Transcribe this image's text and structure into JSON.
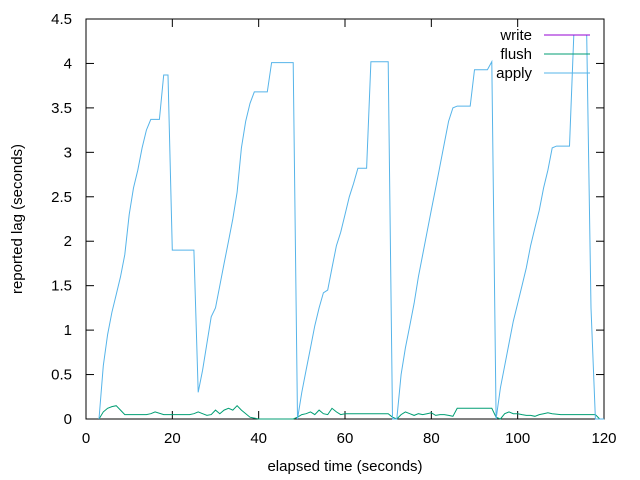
{
  "chart_data": {
    "type": "line",
    "title": "",
    "xlabel": "elapsed time (seconds)",
    "ylabel": "reported lag (seconds)",
    "xlim": [
      0,
      120
    ],
    "ylim": [
      0,
      4.5
    ],
    "xticks": [
      0,
      20,
      40,
      60,
      80,
      100,
      120
    ],
    "yticks": [
      0,
      0.5,
      1,
      1.5,
      2,
      2.5,
      3,
      3.5,
      4,
      4.5
    ],
    "xtick_labels": [
      "0",
      "20",
      "40",
      "60",
      "80",
      "100",
      "120"
    ],
    "ytick_labels": [
      "0",
      "0.5",
      "1",
      "1.5",
      "2",
      "2.5",
      "3",
      "3.5",
      "4",
      "4.5"
    ],
    "grid": false,
    "legend_position": "top-right",
    "series": [
      {
        "name": "write",
        "color": "#9400d3",
        "x": [
          113.5,
          116.5
        ],
        "y": [
          4.32,
          4.32
        ]
      },
      {
        "name": "flush",
        "color": "#009e73",
        "x": [
          3,
          4,
          5,
          6,
          7,
          8,
          9,
          12,
          14,
          15,
          16,
          18,
          20,
          22,
          24,
          25,
          26,
          27,
          28,
          29,
          30,
          31,
          32,
          33,
          34,
          35,
          36,
          38,
          40,
          45,
          48,
          49,
          50,
          51,
          52,
          53,
          54,
          55,
          56,
          57,
          58,
          59,
          60,
          62,
          65,
          70,
          71,
          72,
          73,
          74,
          75,
          76,
          77,
          78,
          79,
          80,
          81,
          82,
          83,
          84,
          85,
          86,
          90,
          94,
          95,
          96,
          97,
          98,
          99,
          100,
          101,
          102,
          103,
          104,
          105,
          106,
          107,
          108,
          110,
          112,
          115,
          118,
          119
        ],
        "y": [
          0,
          0.08,
          0.12,
          0.14,
          0.15,
          0.1,
          0.05,
          0.05,
          0.05,
          0.06,
          0.08,
          0.05,
          0.05,
          0.05,
          0.05,
          0.06,
          0.08,
          0.06,
          0.04,
          0.05,
          0.1,
          0.06,
          0.1,
          0.12,
          0.1,
          0.15,
          0.1,
          0.02,
          0,
          0,
          0,
          0.02,
          0.05,
          0.06,
          0.08,
          0.05,
          0.1,
          0.06,
          0.05,
          0.12,
          0.08,
          0.05,
          0.06,
          0.06,
          0.06,
          0.06,
          0.02,
          0,
          0.05,
          0.08,
          0.06,
          0.04,
          0.06,
          0.05,
          0.06,
          0.07,
          0.04,
          0.05,
          0.05,
          0.04,
          0.03,
          0.12,
          0.12,
          0.12,
          0.02,
          0,
          0.06,
          0.08,
          0.06,
          0.06,
          0.05,
          0.04,
          0.04,
          0.03,
          0.05,
          0.06,
          0.07,
          0.06,
          0.05,
          0.05,
          0.05,
          0.05,
          0
        ]
      },
      {
        "name": "apply",
        "color": "#56b4e9",
        "x": [
          3,
          4,
          5,
          6,
          7,
          8,
          9,
          10,
          11,
          12,
          13,
          14,
          15,
          16,
          17,
          18,
          19,
          20,
          21,
          24,
          25,
          26,
          27,
          28,
          29,
          30,
          31,
          32,
          33,
          34,
          35,
          36,
          37,
          38,
          39,
          40,
          41,
          42,
          43,
          44,
          45,
          46,
          47,
          48,
          49,
          50,
          51,
          52,
          53,
          54,
          55,
          56,
          57,
          58,
          59,
          60,
          61,
          62,
          63,
          64,
          65,
          66,
          67,
          68,
          69,
          70,
          71,
          72,
          73,
          74,
          75,
          76,
          77,
          78,
          79,
          80,
          81,
          82,
          83,
          84,
          85,
          86,
          87,
          88,
          89,
          90,
          91,
          92,
          93,
          94,
          95,
          96,
          97,
          98,
          99,
          100,
          101,
          102,
          103,
          104,
          105,
          106,
          107,
          108,
          109,
          110,
          111,
          112,
          113,
          114,
          115,
          116,
          117,
          118,
          119,
          120
        ],
        "y": [
          0,
          0.6,
          0.95,
          1.2,
          1.4,
          1.6,
          1.85,
          2.3,
          2.6,
          2.8,
          3.05,
          3.25,
          3.37,
          3.37,
          3.37,
          3.87,
          3.87,
          1.9,
          1.9,
          1.9,
          1.9,
          0.3,
          0.55,
          0.85,
          1.15,
          1.25,
          1.5,
          1.75,
          2,
          2.25,
          2.55,
          3.05,
          3.35,
          3.55,
          3.68,
          3.68,
          3.68,
          3.68,
          4.01,
          4.01,
          4.01,
          4.01,
          4.01,
          4.01,
          0,
          0.3,
          0.55,
          0.8,
          1.05,
          1.25,
          1.42,
          1.45,
          1.7,
          1.95,
          2.1,
          2.3,
          2.5,
          2.65,
          2.82,
          2.82,
          2.82,
          4.02,
          4.02,
          4.02,
          4.02,
          4.02,
          0,
          0,
          0.5,
          0.8,
          1.05,
          1.3,
          1.6,
          1.85,
          2.1,
          2.35,
          2.6,
          2.85,
          3.1,
          3.35,
          3.5,
          3.52,
          3.52,
          3.52,
          3.52,
          3.93,
          3.93,
          3.93,
          3.93,
          4.02,
          0,
          0.35,
          0.6,
          0.85,
          1.1,
          1.3,
          1.5,
          1.7,
          1.95,
          2.15,
          2.35,
          2.6,
          2.8,
          3.05,
          3.07,
          3.07,
          3.07,
          3.07,
          4.32,
          4.32,
          4.32,
          4.32,
          1.25,
          0,
          0,
          0
        ]
      }
    ]
  }
}
